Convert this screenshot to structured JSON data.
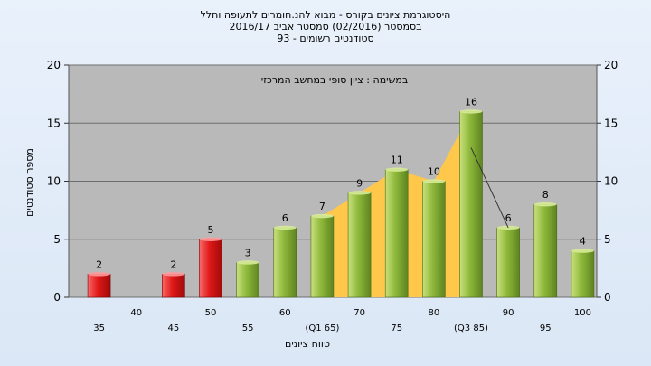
{
  "chart_data": {
    "type": "bar",
    "title_lines": [
      "היסטוגרמת ציונים בקורס - מבוא להנ.חומרים לתעופה וחלל",
      "בסמסטר  (02/2016)  סמסטר אביב 2016/17",
      "סטודנטים רשומים - 93"
    ],
    "annotation": "במשימה : ציון סופי במחשב המרכזי",
    "xlabel": "טווח ציונים",
    "ylabel": "מספר סטודנטים",
    "ylim": [
      0,
      20
    ],
    "yticks": [
      0,
      5,
      10,
      15,
      20
    ],
    "grid": true,
    "categories": [
      "35",
      "40",
      "45",
      "50",
      "55",
      "60",
      "65",
      "70",
      "75",
      "80",
      "85",
      "90",
      "95",
      "100"
    ],
    "category_labels": [
      "35",
      "40",
      "45",
      "50",
      "55",
      "60",
      "(Q1 65)",
      "70",
      "75",
      "80",
      "(Q3 85)",
      "90",
      "95",
      "100"
    ],
    "values": [
      2,
      null,
      2,
      5,
      3,
      6,
      7,
      9,
      11,
      10,
      16,
      6,
      8,
      4
    ],
    "value_labels": [
      "2",
      "",
      "2",
      "5",
      "3",
      "6",
      "7",
      "9",
      "11",
      "10",
      "16",
      "6",
      "8",
      "4"
    ],
    "bar_status": [
      "fail",
      null,
      "fail",
      "fail",
      "pass",
      "pass",
      "pass",
      "pass",
      "pass",
      "pass",
      "pass",
      "pass",
      "pass",
      "pass"
    ],
    "highlight_range": {
      "from": "65",
      "to": "85"
    },
    "colors": {
      "fail": "#e01818",
      "pass": "#8db83a",
      "interquartile_area": "#ffc84a",
      "plot_background": "#b9b9b9",
      "grid": "#6e6e6e"
    }
  }
}
